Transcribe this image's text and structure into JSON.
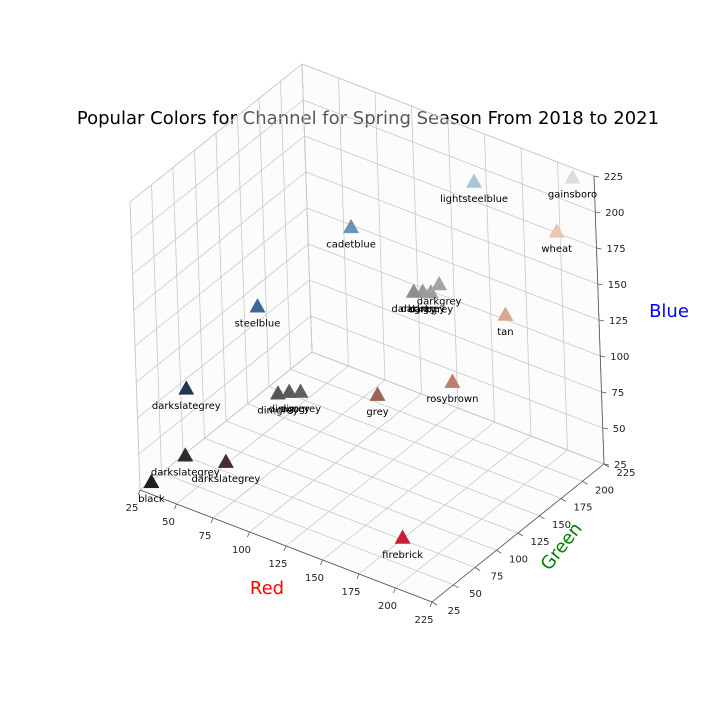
{
  "chart_data": {
    "type": "scatter3d",
    "title": "Popular Colors for Channel for Spring Season From 2018 to 2021",
    "xlabel": "Red",
    "ylabel": "Green",
    "zlabel": "Blue",
    "axis_colors": {
      "x": "#ff0000",
      "y": "#008000",
      "z": "#0000ff"
    },
    "xlim": [
      25,
      225
    ],
    "ylim": [
      25,
      225
    ],
    "zlim": [
      25,
      225
    ],
    "ticks": [
      25,
      50,
      75,
      100,
      125,
      150,
      175,
      200,
      225
    ],
    "marker": "triangle",
    "grid": true,
    "points": [
      {
        "label": "black",
        "x": 30,
        "y": 30,
        "z": 30,
        "color": "#1e1e1e"
      },
      {
        "label": "darkslategrey",
        "x": 45,
        "y": 45,
        "z": 47,
        "color": "#2b2b2e"
      },
      {
        "label": "darkslategrey",
        "x": 70,
        "y": 50,
        "z": 50,
        "color": "#4a2d2d"
      },
      {
        "label": "darkslategrey",
        "x": 35,
        "y": 65,
        "z": 80,
        "color": "#22364f"
      },
      {
        "label": "steelblue",
        "x": 65,
        "y": 100,
        "z": 132,
        "color": "#3b6699"
      },
      {
        "label": "dimgrey",
        "x": 82,
        "y": 92,
        "z": 82,
        "color": "#555555"
      },
      {
        "label": "dimgrey",
        "x": 88,
        "y": 95,
        "z": 84,
        "color": "#5a5a5a"
      },
      {
        "label": "dimgrey",
        "x": 94,
        "y": 98,
        "z": 85,
        "color": "#606060"
      },
      {
        "label": "grey",
        "x": 140,
        "y": 110,
        "z": 95,
        "color": "#9a6558"
      },
      {
        "label": "firebrick",
        "x": 200,
        "y": 35,
        "z": 55,
        "color": "#c92138"
      },
      {
        "label": "cadetblue",
        "x": 95,
        "y": 160,
        "z": 170,
        "color": "#6a93b3"
      },
      {
        "label": "darkgrey",
        "x": 140,
        "y": 155,
        "z": 145,
        "color": "#8e8e8e"
      },
      {
        "label": "darkgrey",
        "x": 145,
        "y": 157,
        "z": 146,
        "color": "#9a9a9a"
      },
      {
        "label": "darkgrey",
        "x": 150,
        "y": 158,
        "z": 147,
        "color": "#a59c9c"
      },
      {
        "label": "darkgrey",
        "x": 156,
        "y": 158,
        "z": 155,
        "color": "#aaa3a3"
      },
      {
        "label": "rosybrown",
        "x": 180,
        "y": 130,
        "z": 110,
        "color": "#bc7f6f"
      },
      {
        "label": "tan",
        "x": 200,
        "y": 160,
        "z": 150,
        "color": "#d5a992"
      },
      {
        "label": "lightsteelblue",
        "x": 160,
        "y": 195,
        "z": 210,
        "color": "#a9c4d9"
      },
      {
        "label": "wheat",
        "x": 210,
        "y": 205,
        "z": 190,
        "color": "#e8c8b1"
      },
      {
        "label": "gainsboro",
        "x": 210,
        "y": 225,
        "z": 218,
        "color": "#dcdcdc"
      }
    ]
  }
}
